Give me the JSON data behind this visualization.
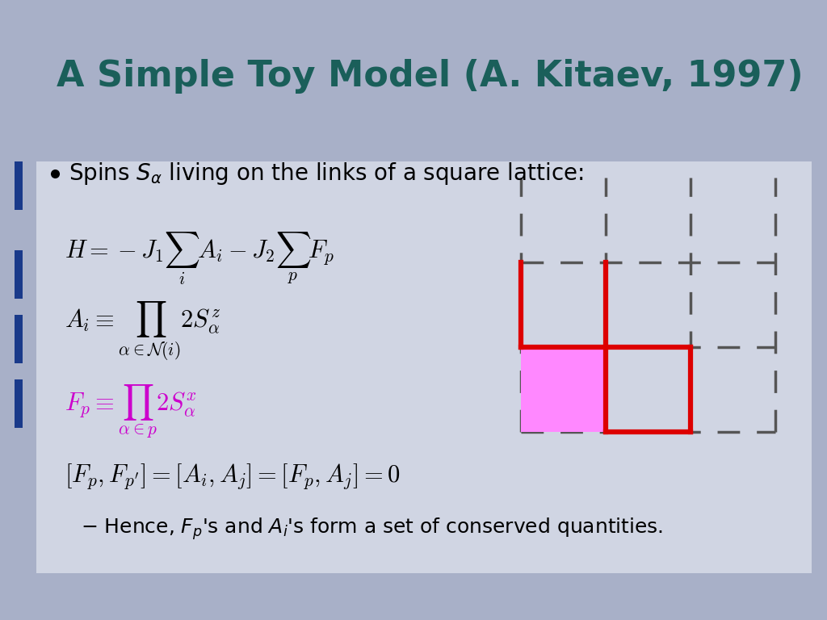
{
  "bg_color": "#a8b0c8",
  "slide_bg": "#d0d4e0",
  "title_text": "A Simple Toy Model (A. Kitaev, 1997)",
  "title_color": "#1a5f5a",
  "title_fontsize": 32,
  "title_bold": true,
  "content_bg": "#d8dce8",
  "bullet_text": "Spins $S_{\\alpha}$ living on the links of a square lattice:",
  "bullet_fontsize": 20,
  "eq1": "$H = -J_1\\sum_i A_i - J_2\\sum_p F_p$",
  "eq2": "$A_i \\equiv \\prod_{\\alpha\\in\\mathcal{N}(i)} 2S^z_\\alpha$",
  "eq3": "$F_p \\equiv \\prod_{\\alpha\\in p} 2S^x_\\alpha$",
  "eq4": "$[F_p, F_{p'}] = [A_i, A_j] = [F_p, A_j] = 0$",
  "eq_color": "#000000",
  "eq3_color": "#cc00cc",
  "note_text": "\\u2013 Hence, $F_p$'s and $A_i$'s form a set of conserved quantities.",
  "note_fontsize": 18,
  "eq_fontsize": 22,
  "grid_color": "#555555",
  "red_color": "#dd0000",
  "magenta_fill": "#ff88ff",
  "sidebar_colors": [
    "#1a3a8a",
    "#1a3a8a",
    "#1a3a8a",
    "#1a3a8a"
  ]
}
